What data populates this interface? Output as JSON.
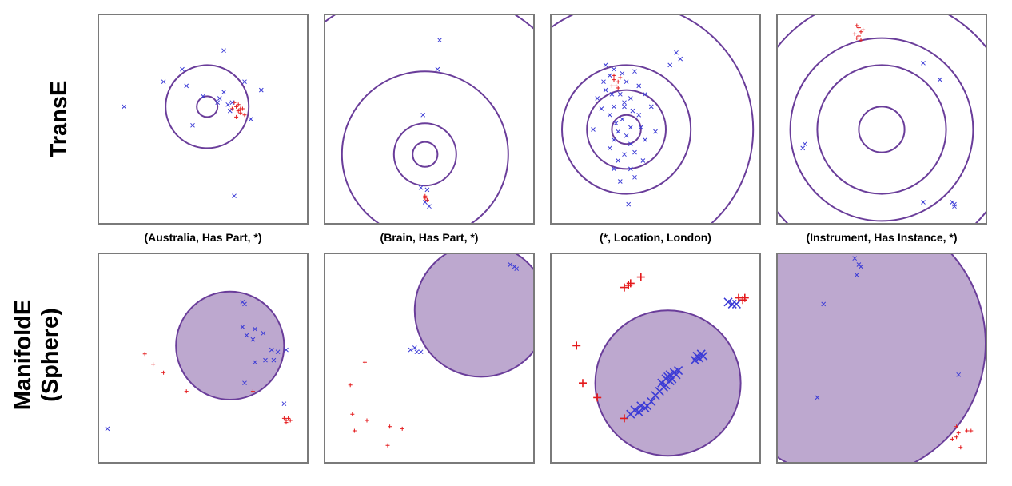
{
  "row_labels": {
    "top": "TransE",
    "bottom_line1": "ManifoldE",
    "bottom_line2": "(Sphere)"
  },
  "column_labels": [
    "(Australia, Has Part, *)",
    "(Brain, Has Part, *)",
    "(*, Location, London)",
    "(Instrument, Has Instance, *)"
  ],
  "colors": {
    "ring": "#6a3d9a",
    "sphere_fill": "#a78bbf",
    "positive": "#e41a1c",
    "negative": "#3b3bd6",
    "frame": "#7a7a7a"
  },
  "chart_data": [
    {
      "type": "scatter",
      "row": "TransE",
      "panel": "(Australia, Has Part, *)",
      "xlim": [
        0,
        100
      ],
      "ylim": [
        0,
        100
      ],
      "rings": {
        "center": [
          52,
          56
        ],
        "radii": [
          5,
          20,
          100
        ]
      },
      "series": [
        {
          "marker": "+",
          "color": "positive",
          "points": [
            [
              65,
              58
            ],
            [
              67,
              54
            ],
            [
              66,
              51
            ],
            [
              68,
              55
            ],
            [
              66,
              56
            ],
            [
              68,
              53
            ],
            [
              70,
              52
            ],
            [
              64,
              55
            ],
            [
              67,
              57
            ],
            [
              69,
              55
            ]
          ]
        },
        {
          "marker": "x",
          "color": "negative",
          "points": [
            [
              60,
              83
            ],
            [
              40,
              74
            ],
            [
              31,
              68
            ],
            [
              42,
              66
            ],
            [
              50,
              61
            ],
            [
              58,
              60
            ],
            [
              60,
              63
            ],
            [
              57,
              58
            ],
            [
              62,
              57
            ],
            [
              63,
              54
            ],
            [
              64,
              58
            ],
            [
              73,
              50
            ],
            [
              70,
              68
            ],
            [
              78,
              64
            ],
            [
              45,
              47
            ],
            [
              12,
              56
            ],
            [
              65,
              13
            ]
          ]
        }
      ]
    },
    {
      "type": "scatter",
      "row": "TransE",
      "panel": "(Brain, Has Part, *)",
      "xlim": [
        0,
        100
      ],
      "ylim": [
        0,
        100
      ],
      "rings": {
        "center": [
          48,
          33
        ],
        "radii": [
          6,
          15,
          40,
          80
        ]
      },
      "series": [
        {
          "marker": "+",
          "color": "positive",
          "points": [
            [
              48,
              12
            ],
            [
              49,
              11
            ],
            [
              48,
              13
            ]
          ]
        },
        {
          "marker": "x",
          "color": "negative",
          "points": [
            [
              55,
              88
            ],
            [
              54,
              74
            ],
            [
              47,
              52
            ],
            [
              46,
              17
            ],
            [
              49,
              16
            ],
            [
              50,
              8
            ],
            [
              48,
              10
            ]
          ]
        }
      ]
    },
    {
      "type": "scatter",
      "row": "TransE",
      "panel": "(*, Location, London)",
      "xlim": [
        0,
        100
      ],
      "ylim": [
        0,
        100
      ],
      "rings": {
        "center": [
          36,
          45
        ],
        "radii": [
          7,
          19,
          31,
          61,
          100
        ]
      },
      "series": [
        {
          "marker": "+",
          "color": "positive",
          "points": [
            [
              30,
              69
            ],
            [
              32,
              68
            ],
            [
              29,
              66
            ],
            [
              31,
              66
            ],
            [
              33,
              70
            ],
            [
              30,
              71
            ],
            [
              32,
              65
            ]
          ]
        },
        {
          "marker": "x",
          "color": "negative",
          "points": [
            [
              25,
              68
            ],
            [
              28,
              71
            ],
            [
              30,
              74
            ],
            [
              34,
              72
            ],
            [
              36,
              68
            ],
            [
              40,
              73
            ],
            [
              26,
              64
            ],
            [
              33,
              62
            ],
            [
              38,
              60
            ],
            [
              35,
              58
            ],
            [
              30,
              56
            ],
            [
              28,
              52
            ],
            [
              34,
              50
            ],
            [
              42,
              52
            ],
            [
              38,
              46
            ],
            [
              32,
              44
            ],
            [
              30,
              40
            ],
            [
              38,
              38
            ],
            [
              40,
              34
            ],
            [
              35,
              33
            ],
            [
              32,
              30
            ],
            [
              44,
              30
            ],
            [
              38,
              26
            ],
            [
              30,
              26
            ],
            [
              40,
              22
            ],
            [
              33,
              20
            ],
            [
              37,
              9
            ],
            [
              22,
              60
            ],
            [
              24,
              55
            ],
            [
              45,
              62
            ],
            [
              48,
              56
            ],
            [
              20,
              45
            ],
            [
              50,
              44
            ],
            [
              45,
              40
            ],
            [
              60,
              82
            ],
            [
              62,
              79
            ],
            [
              57,
              76
            ],
            [
              26,
              76
            ],
            [
              42,
              66
            ],
            [
              29,
              62
            ],
            [
              35,
              56
            ],
            [
              39,
              54
            ],
            [
              31,
              48
            ],
            [
              36,
              42
            ],
            [
              43,
              46
            ],
            [
              28,
              36
            ]
          ]
        }
      ]
    },
    {
      "type": "scatter",
      "row": "TransE",
      "panel": "(Instrument, Has Instance, *)",
      "xlim": [
        0,
        100
      ],
      "ylim": [
        0,
        100
      ],
      "rings": {
        "center": [
          50,
          45
        ],
        "radii": [
          11,
          31,
          44,
          64,
          80
        ]
      },
      "series": [
        {
          "marker": "+",
          "color": "positive",
          "points": [
            [
              38,
              95
            ],
            [
              40,
              92
            ],
            [
              39,
              90
            ],
            [
              41,
              93
            ],
            [
              37,
              91
            ],
            [
              38,
              89
            ],
            [
              40,
              88
            ],
            [
              39,
              94
            ]
          ]
        },
        {
          "marker": "x",
          "color": "negative",
          "points": [
            [
              12,
              36
            ],
            [
              13,
              38
            ],
            [
              70,
              77
            ],
            [
              78,
              69
            ],
            [
              70,
              10
            ],
            [
              84,
              10
            ],
            [
              85,
              8
            ],
            [
              85,
              9
            ]
          ]
        }
      ]
    },
    {
      "type": "scatter",
      "row": "ManifoldE (Sphere)",
      "panel": "(Australia, Has Part, *)",
      "xlim": [
        0,
        100
      ],
      "ylim": [
        0,
        100
      ],
      "sphere": {
        "center": [
          63,
          56
        ],
        "radius": 26
      },
      "series": [
        {
          "marker": "+",
          "color": "positive",
          "points": [
            [
              22,
              52
            ],
            [
              26,
              47
            ],
            [
              31,
              43
            ],
            [
              42,
              34
            ],
            [
              74,
              34
            ],
            [
              89,
              21
            ],
            [
              90,
              20
            ],
            [
              92,
              20
            ],
            [
              91,
              21
            ],
            [
              90,
              19
            ]
          ]
        },
        {
          "marker": "x",
          "color": "negative",
          "points": [
            [
              69,
              77
            ],
            [
              70,
              76
            ],
            [
              69,
              65
            ],
            [
              75,
              64
            ],
            [
              74,
              59
            ],
            [
              71,
              61
            ],
            [
              79,
              62
            ],
            [
              83,
              54
            ],
            [
              84,
              49
            ],
            [
              80,
              49
            ],
            [
              86,
              53
            ],
            [
              90,
              54
            ],
            [
              75,
              48
            ],
            [
              70,
              38
            ],
            [
              89,
              28
            ],
            [
              4,
              16
            ]
          ]
        }
      ]
    },
    {
      "type": "scatter",
      "row": "ManifoldE (Sphere)",
      "panel": "(Brain, Has Part, *)",
      "xlim": [
        0,
        100
      ],
      "ylim": [
        0,
        100
      ],
      "sphere": {
        "center": [
          75,
          73
        ],
        "radius": 32
      },
      "series": [
        {
          "marker": "+",
          "color": "positive",
          "points": [
            [
              19,
              48
            ],
            [
              12,
              37
            ],
            [
              13,
              23
            ],
            [
              14,
              15
            ],
            [
              20,
              20
            ],
            [
              31,
              17
            ],
            [
              37,
              16
            ],
            [
              30,
              8
            ]
          ]
        },
        {
          "marker": "x",
          "color": "negative",
          "points": [
            [
              41,
              54
            ],
            [
              44,
              53
            ],
            [
              46,
              53
            ],
            [
              43,
              55
            ],
            [
              89,
              95
            ],
            [
              91,
              94
            ],
            [
              92,
              93
            ]
          ]
        }
      ]
    },
    {
      "type": "scatter",
      "row": "ManifoldE (Sphere)",
      "panel": "(*, Location, London)",
      "xlim": [
        0,
        100
      ],
      "ylim": [
        0,
        100
      ],
      "sphere": {
        "center": [
          56,
          38
        ],
        "radius": 35
      },
      "series": [
        {
          "marker": "+",
          "color": "positive",
          "points": [
            [
              35,
              84
            ],
            [
              37,
              85
            ],
            [
              38,
              86
            ],
            [
              43,
              89
            ],
            [
              12,
              56
            ],
            [
              15,
              38
            ],
            [
              22,
              31
            ],
            [
              35,
              21
            ],
            [
              90,
              79
            ],
            [
              92,
              78
            ],
            [
              93,
              79
            ]
          ]
        },
        {
          "marker": "x",
          "color": "negative",
          "points": [
            [
              85,
              77
            ],
            [
              87,
              76
            ],
            [
              89,
              76
            ],
            [
              70,
              51
            ],
            [
              72,
              52
            ],
            [
              69,
              49
            ],
            [
              71,
              50
            ],
            [
              73,
              51
            ],
            [
              60,
              42
            ],
            [
              58,
              40
            ],
            [
              55,
              37
            ],
            [
              52,
              34
            ],
            [
              57,
              39
            ],
            [
              54,
              36
            ],
            [
              53,
              38
            ],
            [
              56,
              41
            ],
            [
              59,
              43
            ],
            [
              61,
              44
            ],
            [
              50,
              32
            ],
            [
              48,
              29
            ],
            [
              46,
              27
            ],
            [
              43,
              27
            ],
            [
              45,
              26
            ],
            [
              40,
              25
            ],
            [
              38,
              23
            ],
            [
              42,
              24
            ],
            [
              55,
              40
            ],
            [
              57,
              42
            ]
          ]
        }
      ]
    },
    {
      "type": "scatter",
      "row": "ManifoldE (Sphere)",
      "panel": "(Instrument, Has Instance, *)",
      "xlim": [
        0,
        100
      ],
      "ylim": [
        0,
        100
      ],
      "sphere": {
        "center": [
          35,
          57
        ],
        "radius": 65
      },
      "series": [
        {
          "marker": "+",
          "color": "positive",
          "points": [
            [
              86,
              17
            ],
            [
              87,
              14
            ],
            [
              86,
              12
            ],
            [
              84,
              11
            ],
            [
              91,
              15
            ],
            [
              93,
              15
            ],
            [
              88,
              7
            ]
          ]
        },
        {
          "marker": "x",
          "color": "negative",
          "points": [
            [
              37,
              98
            ],
            [
              39,
              95
            ],
            [
              40,
              94
            ],
            [
              38,
              90
            ],
            [
              22,
              76
            ],
            [
              87,
              42
            ],
            [
              19,
              31
            ]
          ]
        }
      ]
    }
  ]
}
